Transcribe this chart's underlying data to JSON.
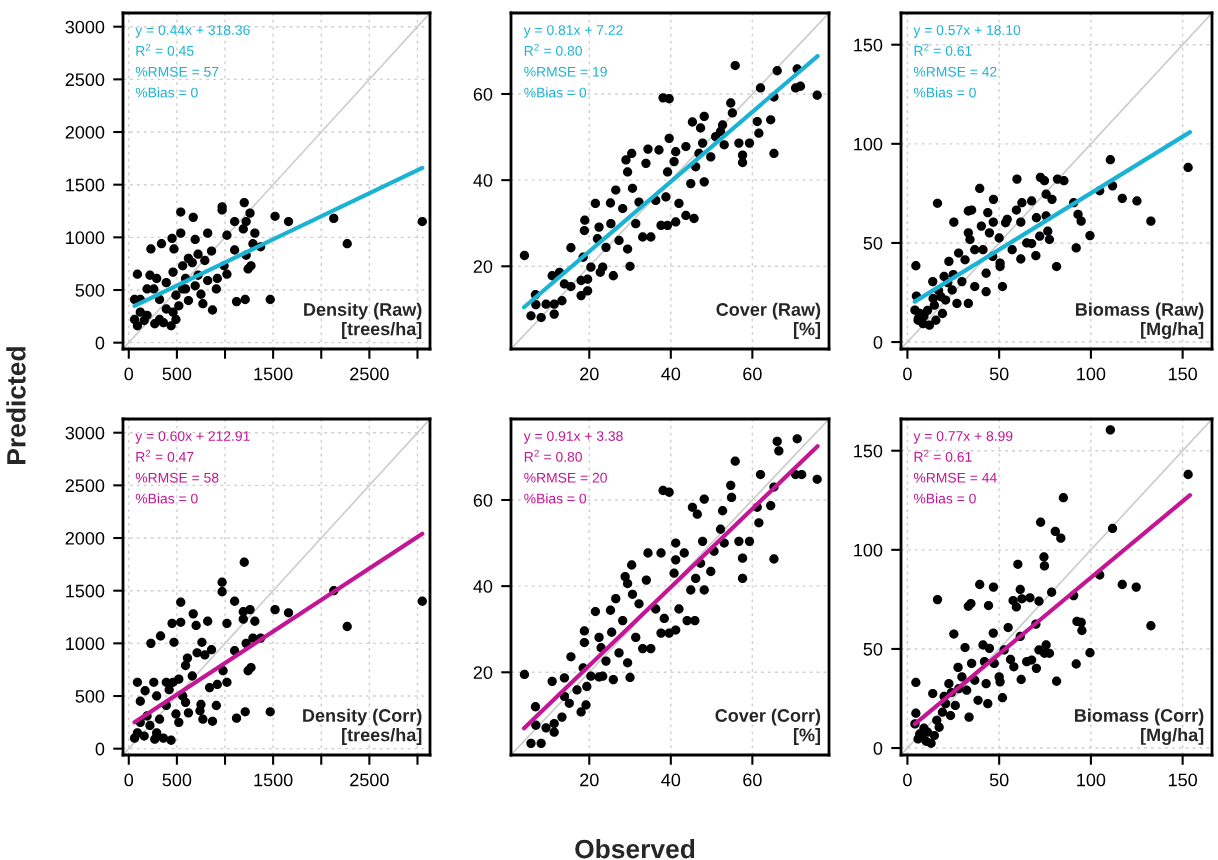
{
  "chart_data": [
    {
      "type": "scatter",
      "title": "Density (Raw)\n[trees/ha]",
      "annotations": [
        "y = 0.44x + 318.36",
        "R$^{2}$ = 0.45",
        "%RMSE = 57",
        "%Bias = 0"
      ],
      "xlim": [
        -60,
        3130
      ],
      "ylim": [
        -60,
        3130
      ],
      "xticks": [
        0,
        500,
        {
          "value": 1000,
          "label": null
        },
        1500,
        {
          "value": 2000,
          "label": null
        },
        2500,
        {
          "value": 3000,
          "label": null
        }
      ],
      "yticks": [
        0,
        500,
        1000,
        1500,
        2000,
        2500,
        3000
      ],
      "grid": true,
      "series": [
        {
          "type": "line",
          "color": "#cccccc",
          "x": [
            -60,
            3130
          ],
          "values": [
            -60,
            3130
          ]
        },
        {
          "marker": "circle",
          "color": "#000000",
          "x": [
            540,
            670,
            450,
            340,
            230,
            470,
            540,
            690,
            820,
            970,
            970,
            1020,
            1200,
            1260,
            1100,
            1190,
            1220,
            1520,
            1660,
            2130,
            2270,
            1310,
            1290,
            1370,
            1220,
            1270,
            1240,
            1100,
            860,
            790,
            720,
            620,
            990,
            1020,
            920,
            820,
            910,
            750,
            770,
            870,
            620,
            520,
            1120,
            1210,
            1470,
            440,
            360,
            270,
            90,
            120,
            60,
            160,
            60,
            260,
            390,
            460,
            560,
            660,
            220,
            320,
            490,
            590,
            120,
            190,
            390,
            320,
            90,
            720,
            690,
            560,
            460,
            490,
            190,
            290,
            590,
            3050
          ],
          "values": [
            1240,
            1190,
            990,
            940,
            890,
            890,
            1040,
            980,
            1040,
            1290,
            1260,
            1020,
            1330,
            1230,
            1150,
            1080,
            1150,
            1200,
            1150,
            1180,
            940,
            1040,
            940,
            910,
            830,
            730,
            700,
            880,
            870,
            780,
            840,
            800,
            730,
            650,
            610,
            590,
            510,
            460,
            370,
            310,
            400,
            350,
            390,
            410,
            410,
            160,
            190,
            180,
            650,
            410,
            220,
            210,
            410,
            510,
            570,
            670,
            730,
            760,
            640,
            410,
            450,
            610,
            290,
            260,
            320,
            220,
            160,
            640,
            540,
            510,
            290,
            220,
            510,
            610,
            510,
            1150
          ]
        },
        {
          "type": "line",
          "color": "#1bb3d4",
          "x": [
            60,
            3050
          ],
          "values": [
            350,
            1660
          ]
        }
      ]
    },
    {
      "type": "scatter",
      "title": "Cover (Raw)\n[%]",
      "annotations": [
        "y = 0.81x + 7.22",
        "R$^{2}$ = 0.80",
        "%RMSE = 19",
        "%Bias = 0"
      ],
      "xlim": [
        0.8,
        78.8
      ],
      "ylim": [
        0.8,
        78.8
      ],
      "xticks": [
        20,
        40,
        60
      ],
      "yticks": [
        20,
        40,
        60
      ],
      "grid": true,
      "series": [
        {
          "type": "line",
          "color": "#cccccc",
          "x": [
            0.8,
            78.8
          ],
          "values": [
            0.8,
            78.8
          ]
        },
        {
          "marker": "circle",
          "color": "#000000",
          "x": [
            4.1,
            5.7,
            8.2,
            6.8,
            6.9,
            9.4,
            11.4,
            11.4,
            13.3,
            10.9,
            12.7,
            13.9,
            15.5,
            15.5,
            18.0,
            19.6,
            18.0,
            19.6,
            18.5,
            18.9,
            18.8,
            20.4,
            22.7,
            23.3,
            21.5,
            22.4,
            22.0,
            24.1,
            25.9,
            25.2,
            25.3,
            26.5,
            27.3,
            29.4,
            30.0,
            28.2,
            29.0,
            30.4,
            29.4,
            30.6,
            31.4,
            32.2,
            33.1,
            35.1,
            33.9,
            34.4,
            36.3,
            37.1,
            38.8,
            39.2,
            37.6,
            39.2,
            41.2,
            38.1,
            39.6,
            39.6,
            42.0,
            43.7,
            45.7,
            40.8,
            41.2,
            43.7,
            44.9,
            46.1,
            46.9,
            45.3,
            48.2,
            47.3,
            47.8,
            48.2,
            49.8,
            51.0,
            52.2,
            52.7,
            53.1,
            54.7,
            55.1,
            55.8,
            56.7,
            57.6,
            57.6,
            59.3,
            61.2,
            61.6,
            62.0,
            64.5,
            65.3,
            65.3,
            66.1,
            71.0,
            70.6,
            71.8,
            75.9
          ],
          "values": [
            22.5,
            8.5,
            8.1,
            13.4,
            11.1,
            11.2,
            11.2,
            8.9,
            12.0,
            17.8,
            18.6,
            15.9,
            24.3,
            15.3,
            16.7,
            17.0,
            13.2,
            14.3,
            22.1,
            30.7,
            28.3,
            19.8,
            18.6,
            19.8,
            34.6,
            29.1,
            26.4,
            24.4,
            17.8,
            34.7,
            29.9,
            37.7,
            26.0,
            24.0,
            20.0,
            33.4,
            44.7,
            46.2,
            41.9,
            38.1,
            29.9,
            34.9,
            26.8,
            26.8,
            43.9,
            47.2,
            35.3,
            47.0,
            36.1,
            41.9,
            29.5,
            29.5,
            30.3,
            59.1,
            58.9,
            49.7,
            34.6,
            31.8,
            31.1,
            44.3,
            46.6,
            47.8,
            39.2,
            43.1,
            46.2,
            53.5,
            54.8,
            52.1,
            48.6,
            39.6,
            45.4,
            50.1,
            51.3,
            52.8,
            48.2,
            57.9,
            55.6,
            66.6,
            48.6,
            45.8,
            44.1,
            48.6,
            53.6,
            50.9,
            61.4,
            54.0,
            59.3,
            46.2,
            65.4,
            65.8,
            61.4,
            61.8,
            59.7
          ]
        },
        {
          "type": "line",
          "color": "#1bb3d4",
          "x": [
            4,
            76
          ],
          "values": [
            10.5,
            68.8
          ]
        }
      ]
    },
    {
      "type": "scatter",
      "title": "Biomass (Raw)\n[Mg/ha]",
      "annotations": [
        "y = 0.57x + 18.10",
        "R$^{2}$ = 0.61",
        "%RMSE = 42",
        "%Bias = 0"
      ],
      "xlim": [
        -3.5,
        166
      ],
      "ylim": [
        -3.5,
        166
      ],
      "xticks": [
        0,
        50,
        100,
        150
      ],
      "yticks": [
        0,
        50,
        100,
        150
      ],
      "grid": true,
      "series": [
        {
          "type": "line",
          "color": "#cccccc",
          "x": [
            -3.5,
            166
          ],
          "values": [
            -3.5,
            166
          ]
        },
        {
          "marker": "circle",
          "color": "#000000",
          "x": [
            4.6,
            4.9,
            4.1,
            5.8,
            6.7,
            8.5,
            12.0,
            15.5,
            16.4,
            13.8,
            18.2,
            19.1,
            14.7,
            20.8,
            20.0,
            22.6,
            25.3,
            24.4,
            27.0,
            27.9,
            29.7,
            31.4,
            33.2,
            35.0,
            33.2,
            34.1,
            33.2,
            36.7,
            36.7,
            39.4,
            40.3,
            41.2,
            42.9,
            42.9,
            43.8,
            44.7,
            46.8,
            46.9,
            46.5,
            50.0,
            50.5,
            50.5,
            51.8,
            53.5,
            54.4,
            57.1,
            59.7,
            61.8,
            61.8,
            62.4,
            59.4,
            65.0,
            67.7,
            70.0,
            67.7,
            70.3,
            72.5,
            74.7,
            72.1,
            75.6,
            75.6,
            76.5,
            77.4,
            78.8,
            81.3,
            81.8,
            85.3,
            90.6,
            92.0,
            93.0,
            94.7,
            99.5,
            104.8,
            110.6,
            111.8,
            117.1,
            125.1,
            132.7,
            153.0,
            6,
            9,
            11,
            14,
            17,
            22,
            25
          ],
          "values": [
            38.5,
            23.2,
            16.1,
            11.0,
            14.4,
            9.3,
            8.5,
            11.0,
            70.0,
            30.5,
            22.9,
            14.4,
            18.6,
            21.2,
            33.1,
            40.7,
            60.5,
            26.3,
            19.5,
            44.9,
            30.5,
            41.5,
            66.1,
            66.6,
            55.1,
            51.7,
            19.5,
            28.0,
            46.6,
            77.5,
            58.5,
            46.6,
            25.4,
            34.7,
            65.3,
            55.1,
            60.5,
            72.0,
            43.2,
            52.5,
            39.8,
            38.1,
            28.0,
            60.2,
            61.9,
            46.6,
            82.2,
            60.5,
            41.9,
            70.3,
            66.6,
            50.0,
            49.7,
            43.6,
            71.2,
            62.7,
            83.1,
            81.4,
            53.4,
            74.6,
            63.6,
            55.9,
            51.7,
            72.0,
            38.1,
            82.2,
            81.4,
            70.3,
            47.5,
            64.4,
            61.0,
            53.7,
            76.3,
            92.0,
            78.8,
            72.5,
            71.2,
            61.0,
            88.1,
            12,
            13,
            16,
            22,
            26,
            30,
            34
          ]
        },
        {
          "type": "line",
          "color": "#1bb3d4",
          "x": [
            4,
            154
          ],
          "values": [
            20.4,
            105.9
          ]
        }
      ]
    },
    {
      "type": "scatter",
      "title": "Density (Corr)\n[trees/ha]",
      "ylabel": "Predicted",
      "annotations": [
        "y = 0.60x + 212.91",
        "R$^{2}$ = 0.47",
        "%RMSE = 58",
        "%Bias = 0"
      ],
      "xlim": [
        -60,
        3130
      ],
      "ylim": [
        -60,
        3130
      ],
      "xticks": [
        0,
        500,
        {
          "value": 1000,
          "label": null
        },
        1500,
        {
          "value": 2000,
          "label": null
        },
        2500,
        {
          "value": 3000,
          "label": null
        }
      ],
      "yticks": [
        0,
        500,
        1000,
        1500,
        2000,
        2500,
        3000
      ],
      "grid": true,
      "series": [
        {
          "type": "line",
          "color": "#cccccc",
          "x": [
            -60,
            3130
          ],
          "values": [
            -60,
            3130
          ]
        },
        {
          "marker": "circle",
          "color": "#000000",
          "x": [
            1200,
            970,
            970,
            540,
            670,
            540,
            450,
            700,
            820,
            1020,
            1100,
            1190,
            1260,
            1310,
            1190,
            1520,
            1660,
            2130,
            2270,
            330,
            230,
            470,
            1220,
            1370,
            1290,
            1270,
            1240,
            1100,
            860,
            760,
            710,
            790,
            610,
            590,
            980,
            1020,
            920,
            840,
            910,
            750,
            740,
            770,
            870,
            1120,
            1210,
            1470,
            440,
            360,
            270,
            90,
            170,
            120,
            60,
            160,
            260,
            390,
            460,
            520,
            660,
            290,
            390,
            490,
            520,
            320,
            190,
            120,
            220,
            90,
            290,
            590,
            620,
            560,
            420,
            3050
          ],
          "values": [
            1770,
            1580,
            1490,
            1390,
            1280,
            1200,
            1190,
            1170,
            1210,
            1190,
            1400,
            1230,
            1320,
            1210,
            1300,
            1320,
            1290,
            1500,
            1160,
            1070,
            1000,
            1010,
            1000,
            1050,
            1050,
            770,
            740,
            930,
            940,
            1010,
            910,
            890,
            860,
            790,
            740,
            630,
            610,
            580,
            410,
            420,
            360,
            280,
            260,
            290,
            350,
            350,
            80,
            100,
            90,
            630,
            550,
            450,
            100,
            120,
            630,
            630,
            630,
            660,
            690,
            500,
            410,
            330,
            250,
            280,
            310,
            250,
            220,
            150,
            150,
            440,
            340,
            500,
            560,
            1400
          ]
        },
        {
          "type": "line",
          "color": "#c41694",
          "x": [
            60,
            3050
          ],
          "values": [
            250,
            2040
          ]
        }
      ]
    },
    {
      "type": "scatter",
      "title": "Cover (Corr)\n[%]",
      "xlabel": "Observed",
      "annotations": [
        "y = 0.91x + 3.38",
        "R$^{2}$ = 0.80",
        "%RMSE = 20",
        "%Bias = 0"
      ],
      "xlim": [
        0.8,
        78.8
      ],
      "ylim": [
        0.8,
        78.8
      ],
      "xticks": [
        20,
        40,
        60
      ],
      "yticks": [
        20,
        40,
        60
      ],
      "grid": true,
      "series": [
        {
          "type": "line",
          "color": "#cccccc",
          "x": [
            0.8,
            78.8
          ],
          "values": [
            0.8,
            78.8
          ]
        },
        {
          "marker": "circle",
          "color": "#000000",
          "x": [
            4.1,
            5.7,
            8.2,
            6.8,
            6.9,
            9.4,
            11.4,
            11.4,
            13.3,
            10.9,
            13.9,
            13.9,
            15.1,
            15.5,
            17.0,
            18.0,
            19.2,
            19.4,
            18.5,
            18.8,
            18.8,
            20.4,
            22.4,
            23.3,
            21.5,
            22.4,
            22.9,
            24.1,
            25.9,
            25.2,
            25.5,
            26.5,
            27.3,
            29.4,
            30.0,
            28.2,
            28.8,
            30.4,
            29.4,
            30.6,
            31.4,
            32.2,
            33.1,
            35.1,
            34.0,
            34.4,
            36.3,
            37.6,
            38.4,
            37.6,
            39.6,
            41.2,
            38.1,
            39.6,
            41.2,
            42.0,
            44.0,
            45.9,
            40.8,
            41.2,
            43.3,
            44.9,
            46.1,
            47.3,
            45.3,
            48.2,
            46.5,
            47.8,
            48.2,
            49.8,
            50.6,
            52.2,
            52.7,
            53.1,
            54.7,
            54.9,
            55.8,
            56.7,
            57.6,
            57.6,
            59.3,
            61.2,
            61.6,
            62.0,
            64.5,
            65.3,
            65.3,
            66.1,
            66.5,
            71.0,
            70.6,
            72.1,
            75.9
          ],
          "values": [
            19.5,
            3.5,
            3.5,
            12.0,
            7.7,
            7.1,
            8.1,
            6.1,
            9.6,
            17.9,
            18.7,
            14.4,
            12.8,
            23.6,
            15.9,
            10.8,
            12.4,
            16.7,
            21.0,
            29.6,
            26.9,
            19.1,
            18.9,
            19.1,
            34.1,
            28.1,
            25.7,
            22.6,
            18.3,
            34.4,
            29.3,
            37.1,
            24.5,
            22.2,
            18.8,
            32.0,
            42.2,
            44.9,
            40.6,
            38.1,
            28.1,
            35.9,
            25.5,
            25.5,
            41.4,
            47.7,
            34.7,
            47.7,
            32.5,
            29.1,
            29.1,
            29.8,
            62.2,
            61.8,
            50.0,
            34.7,
            32.0,
            32.0,
            43.0,
            46.1,
            47.7,
            39.1,
            41.8,
            45.3,
            58.3,
            60.2,
            56.7,
            50.4,
            39.1,
            43.4,
            48.1,
            53.2,
            57.5,
            50.0,
            63.4,
            60.6,
            69.0,
            50.4,
            46.5,
            41.8,
            50.4,
            58.3,
            54.7,
            65.9,
            58.7,
            63.0,
            46.3,
            73.6,
            71.4,
            74.2,
            65.9,
            65.9,
            64.8
          ]
        },
        {
          "type": "line",
          "color": "#c41694",
          "x": [
            4,
            76
          ],
          "values": [
            7.0,
            72.5
          ]
        }
      ]
    },
    {
      "type": "scatter",
      "title": "Biomass (Corr)\n[Mg/ha]",
      "annotations": [
        "y = 0.77x + 8.99",
        "R$^{2}$ = 0.61",
        "%RMSE = 44",
        "%Bias = 0"
      ],
      "xlim": [
        -3.5,
        166
      ],
      "ylim": [
        -3.5,
        166
      ],
      "xticks": [
        0,
        50,
        100,
        150
      ],
      "yticks": [
        0,
        50,
        100,
        150
      ],
      "grid": true,
      "series": [
        {
          "type": "line",
          "color": "#cccccc",
          "x": [
            -3.5,
            166
          ],
          "values": [
            -3.5,
            166
          ]
        },
        {
          "marker": "circle",
          "color": "#000000",
          "x": [
            110.6,
            153.0,
            85.0,
            111.8,
            72.6,
            80.6,
            83.6,
            74.4,
            74.7,
            60.2,
            104.8,
            39.4,
            46.9,
            61.5,
            117.1,
            124.7,
            16.4,
            33.2,
            34.6,
            44.2,
            57.6,
            59.4,
            62.4,
            66.8,
            71.7,
            78.6,
            90.6,
            25.3,
            46.8,
            54.9,
            61.5,
            70.0,
            92.4,
            94.7,
            95.1,
            132.7,
            4.6,
            4.6,
            4.1,
            5.8,
            6.7,
            10.2,
            12.9,
            14.7,
            17.3,
            13.8,
            19.1,
            20.8,
            22.6,
            23.5,
            26.1,
            27.6,
            29.7,
            31.4,
            32.3,
            33.6,
            35.0,
            36.7,
            38.5,
            41.2,
            42.0,
            42.9,
            43.8,
            44.7,
            47.3,
            50.0,
            50.5,
            51.8,
            52.7,
            56.2,
            58.0,
            62.0,
            65.0,
            67.7,
            70.3,
            71.7,
            75.6,
            74.7,
            77.4,
            81.3,
            92.0,
            99.5,
            8,
            9,
            11,
            16,
            20,
            24,
            28
          ],
          "values": [
            160.5,
            138.0,
            126.3,
            110.8,
            113.9,
            109.3,
            105.9,
            96.4,
            91.9,
            92.7,
            87.3,
            82.5,
            81.2,
            80.0,
            82.5,
            81.2,
            74.9,
            71.5,
            72.9,
            71.9,
            74.4,
            71.2,
            75.3,
            75.8,
            74.1,
            78.6,
            76.9,
            57.5,
            58.0,
            60.8,
            56.3,
            62.5,
            63.9,
            63.4,
            59.3,
            61.7,
            33.1,
            17.6,
            12.2,
            4.6,
            7.1,
            3.4,
            2.4,
            6.3,
            10.5,
            27.5,
            18.1,
            22.4,
            32.5,
            16.4,
            21.5,
            40.7,
            35.9,
            50.7,
            29.2,
            15.6,
            42.7,
            34.2,
            24.1,
            52.0,
            43.6,
            32.5,
            22.4,
            50.3,
            42.7,
            35.9,
            33.4,
            25.4,
            49.5,
            44.7,
            41.0,
            34.6,
            43.6,
            44.4,
            40.2,
            49.5,
            52.0,
            47.8,
            47.8,
            33.7,
            42.4,
            48.1,
            6,
            10,
            8,
            14,
            26,
            28,
            30
          ]
        },
        {
          "type": "line",
          "color": "#c41694",
          "x": [
            4,
            154
          ],
          "values": [
            12.1,
            127.6
          ]
        }
      ]
    }
  ]
}
